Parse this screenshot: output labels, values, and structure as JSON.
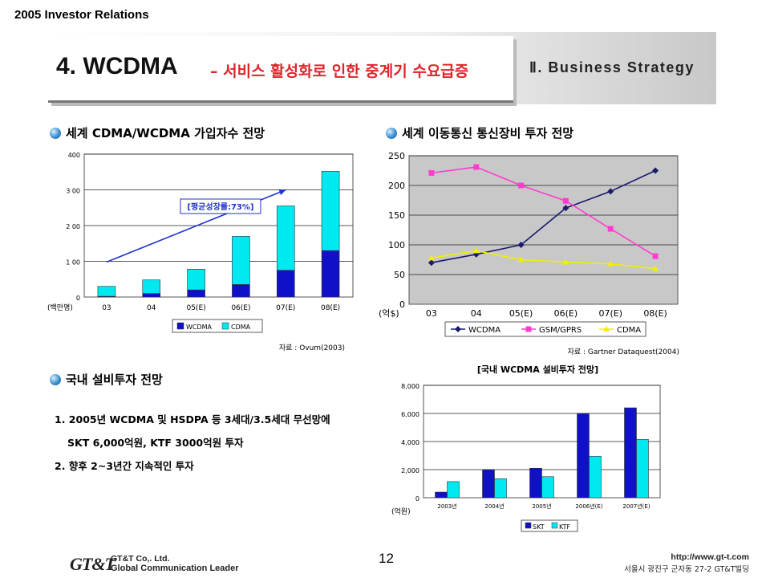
{
  "header": {
    "top_label": "2005 Investor Relations",
    "title": "4. WCDMA",
    "subtitle": "– 서비스 활성화로 인한 중계기 수요급증",
    "section": "Ⅱ. Business Strategy"
  },
  "sections": {
    "subscribers_heading": "세계 CDMA/WCDMA 가입자수 전망",
    "equipment_heading": "세계 이동통신 통신장비 투자 전망",
    "domestic_heading": "국내 설비투자 전망"
  },
  "plan": {
    "items": [
      "1. 2005년 WCDMA 및 HSDPA 등 3세대/3.5세대 무선망에",
      "SKT 6,000억원, KTF 3000억원 투자",
      "2. 향후 2~3년간 지속적인 투자"
    ]
  },
  "footer": {
    "logo": "GT&T",
    "company": "GT&T Co,. Ltd.",
    "tagline": "Global Communication Leader",
    "page": "12",
    "url": "http://www.gt-t.com",
    "address": "서울시 광진구 군자동 27-2 GT&T빌딩"
  },
  "chart_data": [
    {
      "type": "bar",
      "stacked": true,
      "categories": [
        "03",
        "04",
        "05(E)",
        "06(E)",
        "07(E)",
        "08(E)"
      ],
      "series": [
        {
          "name": "WCDMA",
          "color": "#1010c8",
          "values": [
            2,
            10,
            20,
            35,
            75,
            130
          ]
        },
        {
          "name": "CDMA",
          "color": "#00e8f0",
          "values": [
            28,
            38,
            58,
            135,
            180,
            222
          ]
        }
      ],
      "ylim": [
        0,
        400
      ],
      "yticks": [
        "0",
        "1 00",
        "2 00",
        "3 00",
        "400"
      ],
      "ylabel": "(백만명)",
      "annotation": "[평균성장률:73%]",
      "trend_arrow": {
        "from": "03",
        "to": "07(E)",
        "from_value": 98,
        "to_value": 300
      },
      "source": "자료 : Ovum(2003)",
      "legend_position": "bottom",
      "grid": true,
      "plot_bg": "#ffffff"
    },
    {
      "type": "line",
      "categories": [
        "03",
        "04",
        "05(E)",
        "06(E)",
        "07(E)",
        "08(E)"
      ],
      "series": [
        {
          "name": "WCDMA",
          "color": "#1a1a6e",
          "marker": "diamond",
          "values": [
            70,
            84,
            100,
            162,
            190,
            225
          ]
        },
        {
          "name": "GSM/GPRS",
          "color": "#ff3ccf",
          "marker": "square",
          "values": [
            221,
            231,
            200,
            174,
            127,
            81
          ]
        },
        {
          "name": "CDMA",
          "color": "#f0f000",
          "marker": "triangle",
          "values": [
            78,
            90,
            75,
            71,
            68,
            60
          ]
        }
      ],
      "ylim": [
        0,
        250
      ],
      "yticks": [
        "0",
        "50",
        "100",
        "150",
        "200",
        "250"
      ],
      "ylabel": "(억$)",
      "source": "자료 : Gartner Dataquest(2004)",
      "legend_position": "bottom",
      "grid": true,
      "plot_bg": "#c8c8c8"
    },
    {
      "type": "bar",
      "title": "[국내 WCDMA 설비투자 전망]",
      "categories": [
        "2003년",
        "2004년",
        "2005년",
        "2006년(E)",
        "2007년(E)"
      ],
      "series": [
        {
          "name": "SKT",
          "color": "#1010c8",
          "values": [
            400,
            2000,
            2100,
            6000,
            6400
          ]
        },
        {
          "name": "KTF",
          "color": "#00e8f0",
          "values": [
            1150,
            1350,
            1500,
            2950,
            4150
          ]
        }
      ],
      "ylim": [
        0,
        8000
      ],
      "yticks": [
        "0",
        "2,000",
        "4,000",
        "6,000",
        "8,000"
      ],
      "ylabel": "(억원)",
      "legend_position": "bottom",
      "grid": true,
      "plot_bg": "#ffffff"
    }
  ]
}
